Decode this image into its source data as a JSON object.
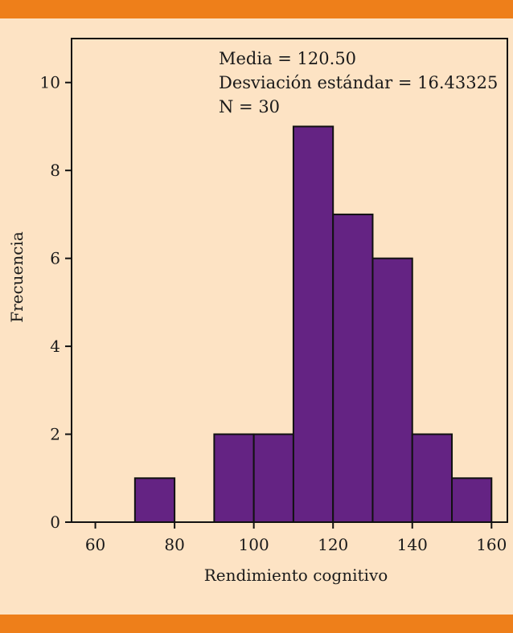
{
  "colors": {
    "band": "#ee7f1a",
    "background": "#fde3c4",
    "bar_fill": "#642383",
    "bar_stroke": "#111111"
  },
  "chart_data": {
    "type": "bar",
    "subtype": "histogram",
    "bins": [
      {
        "x0": 70,
        "x1": 80,
        "value": 1
      },
      {
        "x0": 90,
        "x1": 100,
        "value": 2
      },
      {
        "x0": 100,
        "x1": 110,
        "value": 2
      },
      {
        "x0": 110,
        "x1": 120,
        "value": 9
      },
      {
        "x0": 120,
        "x1": 130,
        "value": 7
      },
      {
        "x0": 130,
        "x1": 140,
        "value": 6
      },
      {
        "x0": 140,
        "x1": 150,
        "value": 2
      },
      {
        "x0": 150,
        "x1": 160,
        "value": 1
      }
    ],
    "xlabel": "Rendimiento cognitivo",
    "ylabel": "Frecuencia",
    "xlim": [
      54,
      164
    ],
    "ylim": [
      0,
      11
    ],
    "xticks": [
      60,
      80,
      100,
      120,
      140,
      160
    ],
    "yticks": [
      0,
      2,
      4,
      6,
      8,
      10
    ],
    "annotations": [
      "Media = 120.50",
      "Desviación estándar = 16.43325",
      "N = 30"
    ],
    "grid": false
  }
}
